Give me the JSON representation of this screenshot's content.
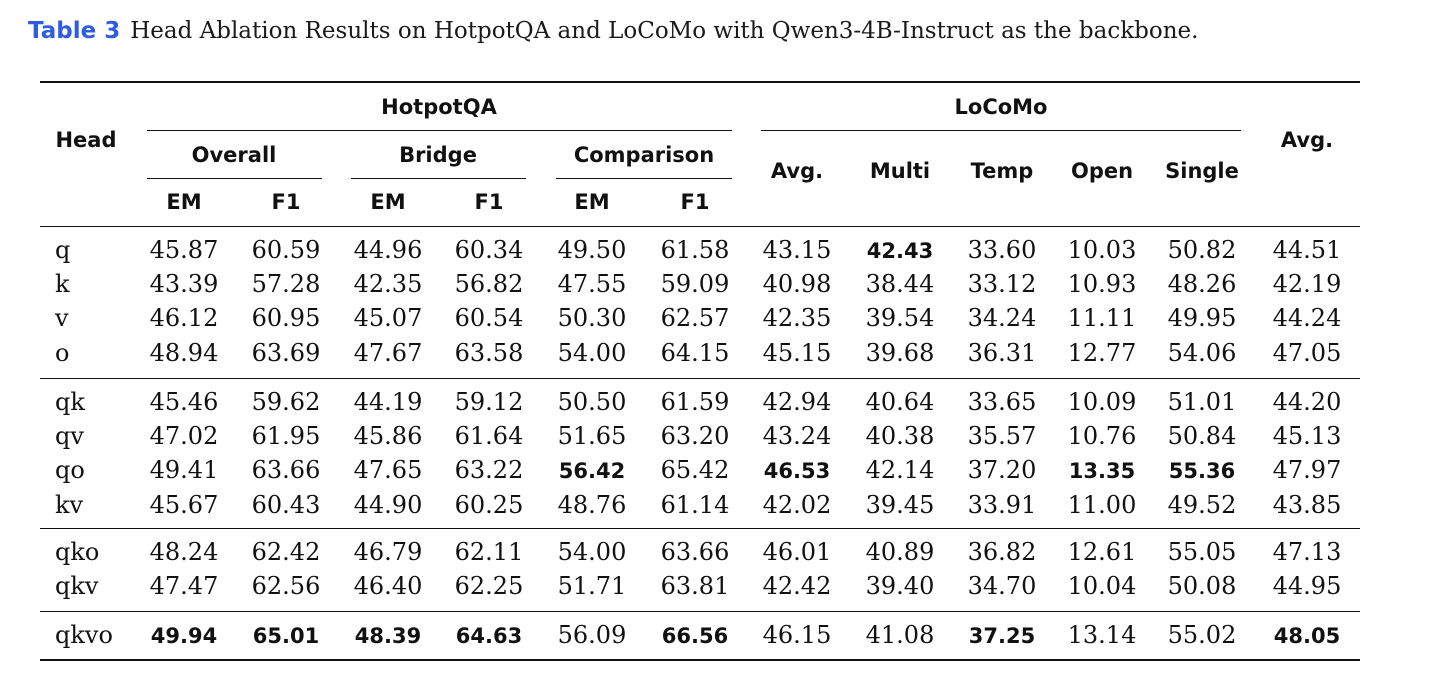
{
  "caption": {
    "label": "Table 3",
    "text": "Head Ablation Results on HotpotQA and LoCoMo with Qwen3-4B-Instruct as the backbone."
  },
  "header": {
    "head": "Head",
    "hotpotqa": "HotpotQA",
    "locomo": "LoCoMo",
    "avg": "Avg.",
    "overall": "Overall",
    "bridge": "Bridge",
    "comparison": "Comparison",
    "em": "EM",
    "f1": "F1",
    "locomo_cols": [
      "Avg.",
      "Multi",
      "Temp",
      "Open",
      "Single"
    ]
  },
  "groups": [
    [
      {
        "head": "q",
        "values": [
          "45.87",
          "60.59",
          "44.96",
          "60.34",
          "49.50",
          "61.58",
          "43.15",
          "42.43",
          "33.60",
          "10.03",
          "50.82",
          "44.51"
        ],
        "bold": [
          7
        ]
      },
      {
        "head": "k",
        "values": [
          "43.39",
          "57.28",
          "42.35",
          "56.82",
          "47.55",
          "59.09",
          "40.98",
          "38.44",
          "33.12",
          "10.93",
          "48.26",
          "42.19"
        ],
        "bold": []
      },
      {
        "head": "v",
        "values": [
          "46.12",
          "60.95",
          "45.07",
          "60.54",
          "50.30",
          "62.57",
          "42.35",
          "39.54",
          "34.24",
          "11.11",
          "49.95",
          "44.24"
        ],
        "bold": []
      },
      {
        "head": "o",
        "values": [
          "48.94",
          "63.69",
          "47.67",
          "63.58",
          "54.00",
          "64.15",
          "45.15",
          "39.68",
          "36.31",
          "12.77",
          "54.06",
          "47.05"
        ],
        "bold": []
      }
    ],
    [
      {
        "head": "qk",
        "values": [
          "45.46",
          "59.62",
          "44.19",
          "59.12",
          "50.50",
          "61.59",
          "42.94",
          "40.64",
          "33.65",
          "10.09",
          "51.01",
          "44.20"
        ],
        "bold": []
      },
      {
        "head": "qv",
        "values": [
          "47.02",
          "61.95",
          "45.86",
          "61.64",
          "51.65",
          "63.20",
          "43.24",
          "40.38",
          "35.57",
          "10.76",
          "50.84",
          "45.13"
        ],
        "bold": []
      },
      {
        "head": "qo",
        "values": [
          "49.41",
          "63.66",
          "47.65",
          "63.22",
          "56.42",
          "65.42",
          "46.53",
          "42.14",
          "37.20",
          "13.35",
          "55.36",
          "47.97"
        ],
        "bold": [
          4,
          6,
          9,
          10
        ]
      },
      {
        "head": "kv",
        "values": [
          "45.67",
          "60.43",
          "44.90",
          "60.25",
          "48.76",
          "61.14",
          "42.02",
          "39.45",
          "33.91",
          "11.00",
          "49.52",
          "43.85"
        ],
        "bold": []
      }
    ],
    [
      {
        "head": "qko",
        "values": [
          "48.24",
          "62.42",
          "46.79",
          "62.11",
          "54.00",
          "63.66",
          "46.01",
          "40.89",
          "36.82",
          "12.61",
          "55.05",
          "47.13"
        ],
        "bold": []
      },
      {
        "head": "qkv",
        "values": [
          "47.47",
          "62.56",
          "46.40",
          "62.25",
          "51.71",
          "63.81",
          "42.42",
          "39.40",
          "34.70",
          "10.04",
          "50.08",
          "44.95"
        ],
        "bold": []
      }
    ],
    [
      {
        "head": "qkvo",
        "values": [
          "49.94",
          "65.01",
          "48.39",
          "64.63",
          "56.09",
          "66.56",
          "46.15",
          "41.08",
          "37.25",
          "13.14",
          "55.02",
          "48.05"
        ],
        "bold": [
          0,
          1,
          2,
          3,
          5,
          8,
          11
        ]
      }
    ]
  ]
}
